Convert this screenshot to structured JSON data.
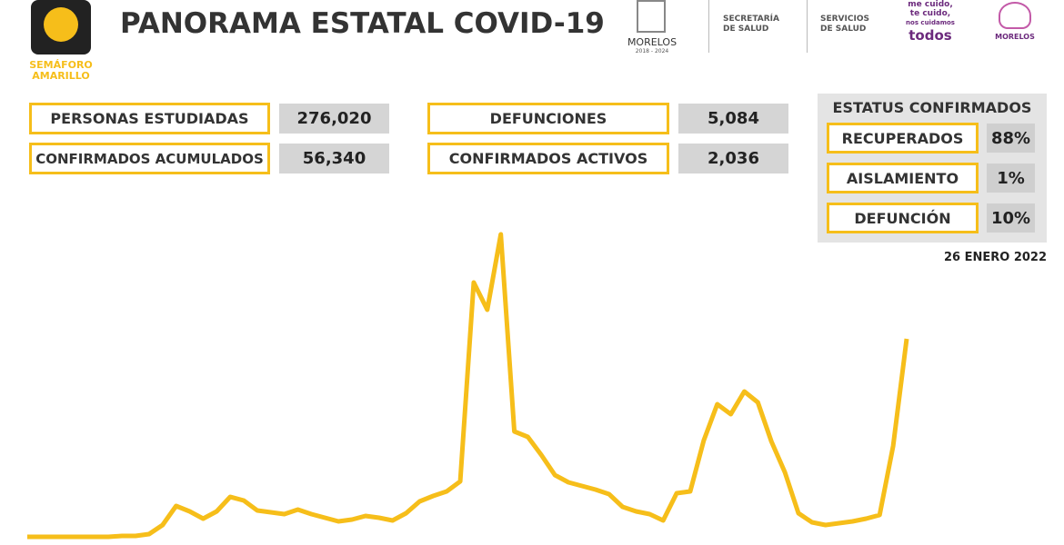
{
  "header": {
    "title": "PANORAMA ESTATAL COVID-19",
    "semaforo": [
      "SEMÁFORO",
      "AMARILLO"
    ]
  },
  "logos": {
    "state": "MORELOS",
    "state_years": "2018 - 2024",
    "secretaria": [
      "SECRETARÍA",
      "DE SALUD"
    ],
    "servicios": [
      "SERVICIOS",
      "DE SALUD"
    ],
    "slogan": [
      "me cuido,",
      "te cuido,",
      "nos cuidamos",
      "todos"
    ],
    "brand": "MORELOS"
  },
  "stats": [
    {
      "label": "PERSONAS ESTUDIADAS",
      "value": "276,020"
    },
    {
      "label": "CONFIRMADOS ACUMULADOS",
      "value": "56,340"
    },
    {
      "label": "DEFUNCIONES",
      "value": "5,084"
    },
    {
      "label": "CONFIRMADOS ACTIVOS",
      "value": "2,036"
    }
  ],
  "status": {
    "title": "ESTATUS CONFIRMADOS",
    "rows": [
      {
        "label": "RECUPERADOS",
        "value": "88%"
      },
      {
        "label": "AISLAMIENTO",
        "value": "1%"
      },
      {
        "label": "DEFUNCIÓN",
        "value": "10%"
      }
    ]
  },
  "date": "26 ENERO 2022",
  "chart_data": {
    "type": "line",
    "color": "#f6be1a",
    "values": [
      0,
      0,
      0,
      0,
      0,
      0,
      0,
      1,
      1,
      3,
      13,
      34,
      28,
      20,
      28,
      44,
      40,
      29,
      27,
      25,
      30,
      25,
      21,
      17,
      19,
      23,
      21,
      18,
      26,
      39,
      45,
      50,
      61,
      280,
      250,
      333,
      116,
      110,
      90,
      68,
      60,
      56,
      52,
      47,
      33,
      28,
      25,
      18,
      48,
      50,
      106,
      146,
      135,
      160,
      148,
      105,
      71,
      26,
      16,
      13,
      15,
      17,
      20,
      24,
      100,
      218
    ]
  }
}
